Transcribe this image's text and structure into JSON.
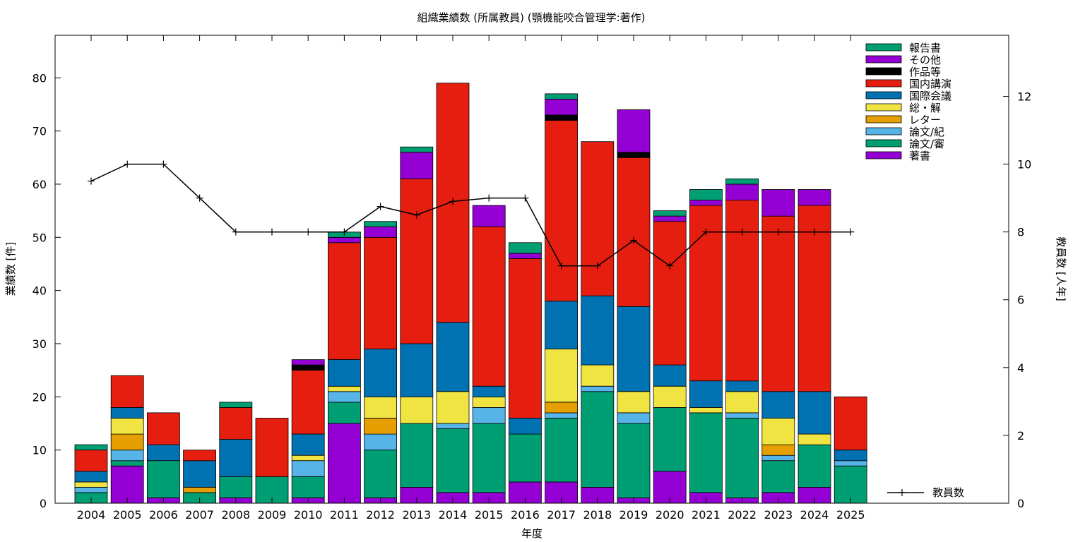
{
  "chart_data": {
    "type": "bar",
    "stacked": true,
    "title": "組織業績数 (所属教員) (顎機能咬合管理学:著作)",
    "xlabel": "年度",
    "ylabel": "業績数 [件]",
    "y2label": "教員数 [人年]",
    "ylim": [
      0,
      88
    ],
    "y2lim": [
      0,
      13.8
    ],
    "yticks": [
      0,
      10,
      20,
      30,
      40,
      50,
      60,
      70,
      80
    ],
    "y2ticks": [
      0,
      2,
      4,
      6,
      8,
      10,
      12
    ],
    "grid": false,
    "legend_position": "top-right",
    "categories": [
      "2004",
      "2005",
      "2006",
      "2007",
      "2008",
      "2009",
      "2010",
      "2011",
      "2012",
      "2013",
      "2014",
      "2015",
      "2016",
      "2017",
      "2018",
      "2019",
      "2020",
      "2021",
      "2022",
      "2023",
      "2024",
      "2025"
    ],
    "series": [
      {
        "name": "著書",
        "color": "#9400d3",
        "values": [
          0,
          7,
          1,
          0,
          1,
          0,
          1,
          15,
          1,
          3,
          2,
          2,
          4,
          4,
          3,
          1,
          6,
          2,
          1,
          2,
          3,
          0
        ]
      },
      {
        "name": "論文/審",
        "color": "#009e73",
        "values": [
          2,
          1,
          7,
          2,
          4,
          5,
          4,
          4,
          9,
          12,
          12,
          13,
          9,
          12,
          18,
          14,
          12,
          15,
          15,
          6,
          8,
          7
        ]
      },
      {
        "name": "論文/紀",
        "color": "#56b4e9",
        "values": [
          1,
          2,
          0,
          0,
          0,
          0,
          3,
          2,
          3,
          0,
          1,
          3,
          0,
          1,
          1,
          2,
          0,
          0,
          1,
          1,
          0,
          1
        ]
      },
      {
        "name": "レター",
        "color": "#e69f00",
        "values": [
          0,
          3,
          0,
          1,
          0,
          0,
          0,
          0,
          3,
          0,
          0,
          0,
          0,
          2,
          0,
          0,
          0,
          0,
          0,
          2,
          0,
          0
        ]
      },
      {
        "name": "総・解",
        "color": "#f0e442",
        "values": [
          1,
          3,
          0,
          0,
          0,
          0,
          1,
          1,
          4,
          5,
          6,
          2,
          0,
          10,
          4,
          4,
          4,
          1,
          4,
          5,
          2,
          0
        ]
      },
      {
        "name": "国際会議",
        "color": "#0072b2",
        "values": [
          2,
          2,
          3,
          5,
          7,
          0,
          4,
          5,
          9,
          10,
          13,
          2,
          3,
          9,
          13,
          16,
          4,
          5,
          2,
          5,
          8,
          2
        ]
      },
      {
        "name": "国内講演",
        "color": "#e51e10",
        "values": [
          4,
          6,
          6,
          2,
          6,
          11,
          12,
          22,
          21,
          31,
          45,
          30,
          30,
          34,
          29,
          28,
          27,
          33,
          34,
          33,
          35,
          10
        ]
      },
      {
        "name": "作品等",
        "color": "#000000",
        "values": [
          0,
          0,
          0,
          0,
          0,
          0,
          1,
          0,
          0,
          0,
          0,
          0,
          0,
          1,
          0,
          1,
          0,
          0,
          0,
          0,
          0,
          0
        ]
      },
      {
        "name": "その他",
        "color": "#9400d3",
        "values": [
          0,
          0,
          0,
          0,
          0,
          0,
          1,
          1,
          2,
          5,
          0,
          4,
          1,
          3,
          0,
          8,
          1,
          1,
          3,
          5,
          3,
          0
        ]
      },
      {
        "name": "報告書",
        "color": "#009e73",
        "values": [
          1,
          0,
          0,
          0,
          1,
          0,
          0,
          1,
          1,
          1,
          0,
          0,
          2,
          1,
          0,
          0,
          1,
          2,
          1,
          0,
          0,
          0
        ]
      }
    ],
    "line": {
      "name": "教員数",
      "color": "#000000",
      "axis": "y2",
      "values": [
        9.5,
        10,
        10,
        9,
        8,
        8,
        8,
        8,
        8.75,
        8.5,
        8.9,
        9,
        9,
        7,
        7,
        7.75,
        7,
        8,
        8,
        8,
        8,
        8
      ]
    }
  }
}
